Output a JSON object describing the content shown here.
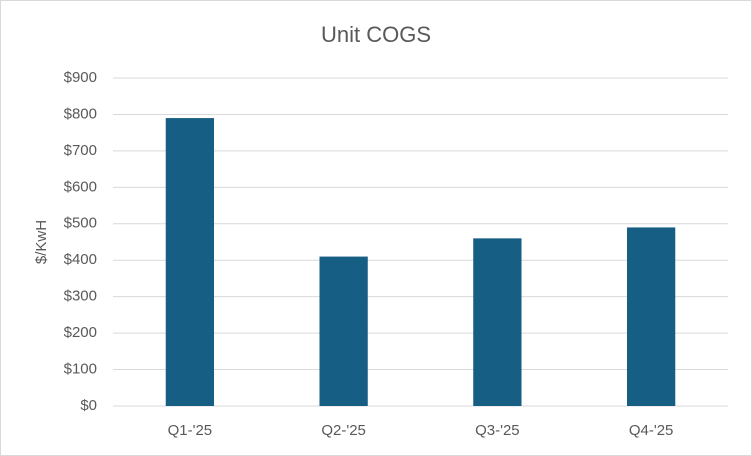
{
  "chart_data": {
    "type": "bar",
    "title": "Unit COGS",
    "y_label": "$/KwH",
    "categories": [
      "Q1-'25",
      "Q2-'25",
      "Q3-'25",
      "Q4-'25"
    ],
    "values": [
      790,
      410,
      460,
      490
    ],
    "color": "#175e84",
    "ylim": [
      0,
      900
    ],
    "yticks": [
      {
        "value": 0,
        "label": "$0"
      },
      {
        "value": 100,
        "label": "$100"
      },
      {
        "value": 200,
        "label": "$200"
      },
      {
        "value": 300,
        "label": "$300"
      },
      {
        "value": 400,
        "label": "$400"
      },
      {
        "value": 500,
        "label": "$500"
      },
      {
        "value": 600,
        "label": "$600"
      },
      {
        "value": 700,
        "label": "$700"
      },
      {
        "value": 800,
        "label": "$800"
      },
      {
        "value": 900,
        "label": "$900"
      }
    ],
    "grid": true
  }
}
